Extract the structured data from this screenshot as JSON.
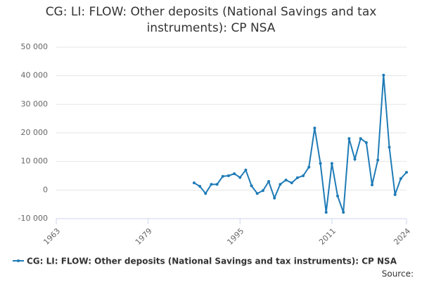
{
  "chart_data": {
    "type": "line",
    "title": "CG: LI: FLOW: Other deposits (National Savings and tax instruments): CP NSA",
    "source": "Source:",
    "x": [
      1987,
      1988,
      1989,
      1990,
      1991,
      1992,
      1993,
      1994,
      1995,
      1996,
      1997,
      1998,
      1999,
      2000,
      2001,
      2002,
      2003,
      2004,
      2005,
      2006,
      2007,
      2008,
      2009,
      2010,
      2011,
      2012,
      2013,
      2014,
      2015,
      2016,
      2017,
      2018,
      2019,
      2020,
      2021,
      2022,
      2023,
      2024
    ],
    "series": [
      {
        "name": "CG: LI: FLOW: Other deposits (National Savings and tax instruments): CP NSA",
        "color": "#1f7bb6",
        "values": [
          2500,
          1300,
          -1200,
          2000,
          2000,
          4800,
          5000,
          5700,
          4400,
          7000,
          1500,
          -1200,
          -200,
          3000,
          -2800,
          2000,
          3500,
          2500,
          4300,
          5000,
          8000,
          21700,
          9300,
          -7800,
          9300,
          -2100,
          -7800,
          18000,
          10800,
          18000,
          16600,
          1800,
          10500,
          40200,
          15000,
          -1600,
          4000,
          6200
        ]
      }
    ],
    "xlim": [
      1963,
      2024
    ],
    "xticks": [
      1963,
      1979,
      1995,
      2011,
      2024
    ],
    "ylim": [
      -10000,
      50000
    ],
    "yticks": [
      {
        "value": -10000,
        "label": "-10 000"
      },
      0,
      {
        "value": 10000,
        "label": "10 000"
      },
      {
        "value": 20000,
        "label": "20 000"
      },
      {
        "value": 30000,
        "label": "30 000"
      },
      {
        "value": 40000,
        "label": "40 000"
      },
      {
        "value": 50000,
        "label": "50 000"
      }
    ],
    "grid": true
  }
}
